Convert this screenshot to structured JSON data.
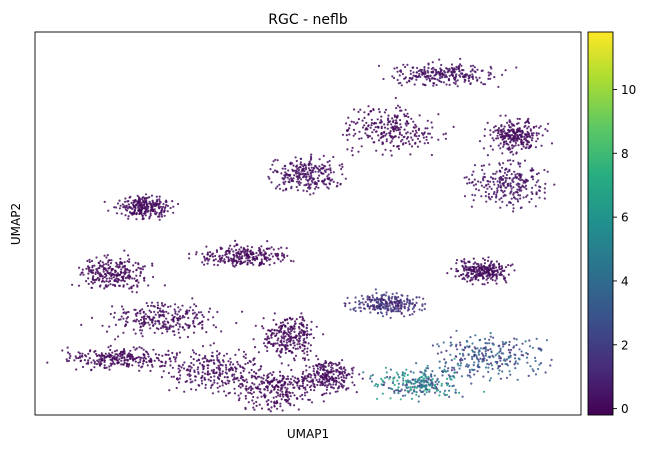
{
  "chart_data": {
    "type": "scatter",
    "title": "RGC - neflb",
    "xlabel": "UMAP1",
    "ylabel": "UMAP2",
    "x_ticks": [],
    "y_ticks": [],
    "colorbar": {
      "colormap": "viridis",
      "min": -0.2,
      "max": 11.8,
      "ticks": [
        0,
        2,
        4,
        6,
        8,
        10
      ],
      "tick_labels": [
        "0",
        "2",
        "4",
        "6",
        "8",
        "10"
      ],
      "stops": [
        "#440154",
        "#472c7a",
        "#3b518b",
        "#2c718e",
        "#21908d",
        "#27ad81",
        "#5cc863",
        "#aadc32",
        "#fde725"
      ]
    },
    "point_color": "#440154",
    "clusters": [
      {
        "x": 2.1,
        "y": 6.8,
        "value": 0.2
      },
      {
        "x": 5.2,
        "y": 7.9,
        "value": 0.3
      },
      {
        "x": 6.9,
        "y": 9.4,
        "value": 0.1
      },
      {
        "x": 7.9,
        "y": 11.2,
        "value": 0.4
      },
      {
        "x": 9.3,
        "y": 9.2,
        "value": 0.2
      },
      {
        "x": 9.1,
        "y": 7.6,
        "value": 0.5
      },
      {
        "x": 4.0,
        "y": 5.2,
        "value": 0.1
      },
      {
        "x": 2.4,
        "y": 3.1,
        "value": 0.2
      },
      {
        "x": 4.9,
        "y": 2.5,
        "value": 0.1
      },
      {
        "x": 6.8,
        "y": 3.6,
        "value": 1.5
      },
      {
        "x": 7.4,
        "y": 1.0,
        "value": 4.6
      },
      {
        "x": 8.8,
        "y": 1.9,
        "value": 2.8
      },
      {
        "x": 8.6,
        "y": 4.7,
        "value": 0.2
      },
      {
        "x": 1.5,
        "y": 4.6,
        "value": 0.1
      },
      {
        "x": 3.4,
        "y": 1.4,
        "value": 0.2
      },
      {
        "x": 1.6,
        "y": 1.8,
        "value": 0.1
      },
      {
        "x": 5.6,
        "y": 1.2,
        "value": 0.2
      },
      {
        "x": 4.6,
        "y": 0.8,
        "value": 0.1
      }
    ]
  }
}
